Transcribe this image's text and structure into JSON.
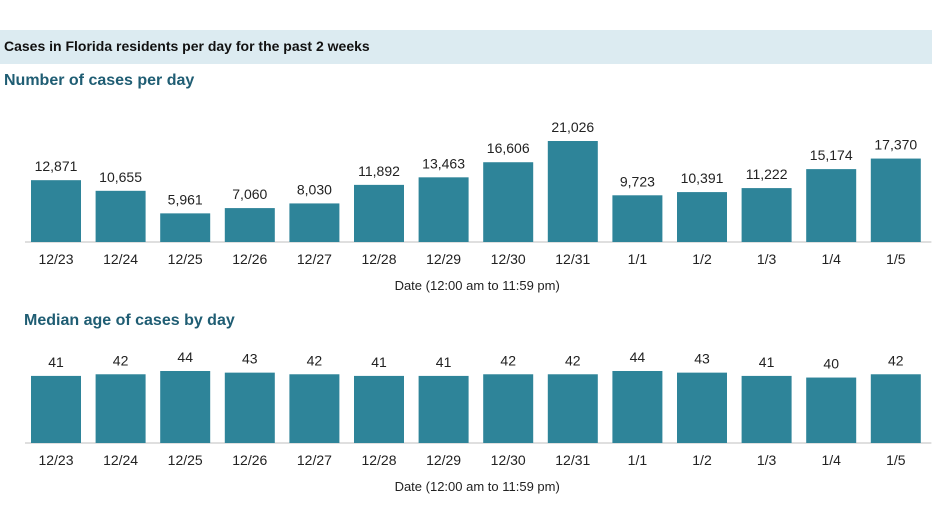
{
  "header": {
    "title": "Cases in Florida residents per day for the past 2 weeks"
  },
  "colors": {
    "bar": "#2e8499",
    "header_band": "#dcebf1",
    "chart_title": "#1f5d73"
  },
  "chart_data": [
    {
      "type": "bar",
      "title": "Number of cases per day",
      "xlabel": "Date (12:00 am to 11:59 pm)",
      "ylabel": "",
      "categories": [
        "12/23",
        "12/24",
        "12/25",
        "12/26",
        "12/27",
        "12/28",
        "12/29",
        "12/30",
        "12/31",
        "1/1",
        "1/2",
        "1/3",
        "1/4",
        "1/5"
      ],
      "values": [
        12871,
        10655,
        5961,
        7060,
        8030,
        11892,
        13463,
        16606,
        21026,
        9723,
        10391,
        11222,
        15174,
        17370
      ],
      "value_labels": [
        "12,871",
        "10,655",
        "5,961",
        "7,060",
        "8,030",
        "11,892",
        "13,463",
        "16,606",
        "21,026",
        "9,723",
        "10,391",
        "11,222",
        "15,174",
        "17,370"
      ],
      "ylim": [
        0,
        21026
      ],
      "grid": false,
      "legend": "none"
    },
    {
      "type": "bar",
      "title": "Median age of cases by day",
      "xlabel": "Date (12:00 am to 11:59 pm)",
      "ylabel": "",
      "categories": [
        "12/23",
        "12/24",
        "12/25",
        "12/26",
        "12/27",
        "12/28",
        "12/29",
        "12/30",
        "12/31",
        "1/1",
        "1/2",
        "1/3",
        "1/4",
        "1/5"
      ],
      "values": [
        41,
        42,
        44,
        43,
        42,
        41,
        41,
        42,
        42,
        44,
        43,
        41,
        40,
        42
      ],
      "value_labels": [
        "41",
        "42",
        "44",
        "43",
        "42",
        "41",
        "41",
        "42",
        "42",
        "44",
        "43",
        "41",
        "40",
        "42"
      ],
      "ylim": [
        0,
        44
      ],
      "grid": false,
      "legend": "none"
    }
  ]
}
